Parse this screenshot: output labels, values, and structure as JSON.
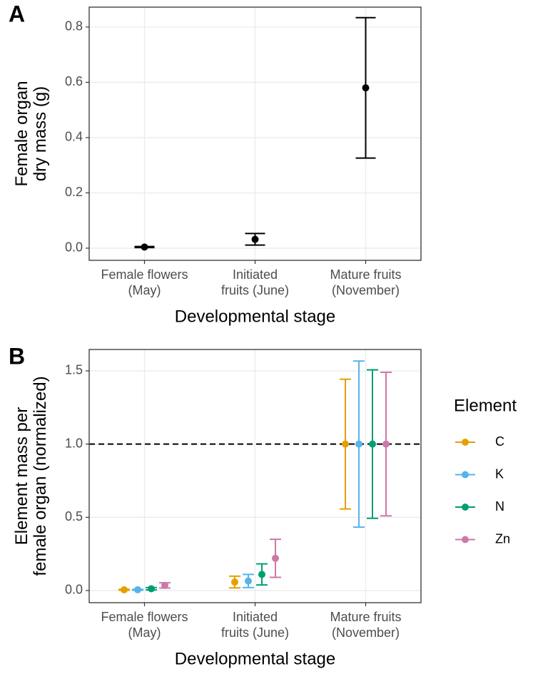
{
  "chart_data": [
    {
      "type": "errorbar",
      "tag": "A",
      "ylabel": "Female organ\ndry mass (g)",
      "xlabel": "Developmental stage",
      "categories": [
        "Female flowers\n(May)",
        "Initiated\nfruits (June)",
        "Mature fruits\n(November)"
      ],
      "values": [
        0.004,
        0.032,
        0.58
      ],
      "errors": [
        0.002,
        0.021,
        0.254
      ],
      "color": "#000000",
      "ylim": [
        -0.044,
        0.872
      ],
      "yticks": [
        {
          "value": 0,
          "label": "0.0"
        },
        0.2,
        0.4,
        0.6,
        0.8
      ],
      "grid": true
    },
    {
      "type": "errorbar",
      "tag": "B",
      "ylabel": "Element mass per\nfemale organ (normalized)",
      "xlabel": "Developmental stage",
      "categories": [
        "Female flowers\n(May)",
        "Initiated\nfruits (June)",
        "Mature fruits\n(November)"
      ],
      "legend_title": "Element",
      "legend": "right",
      "hline": 1,
      "series": [
        {
          "name": "C",
          "color": "#E69F00",
          "values": [
            0.005,
            0.058,
            1.0
          ],
          "errors": [
            0.003,
            0.04,
            0.443
          ]
        },
        {
          "name": "K",
          "color": "#56B4E9",
          "values": [
            0.005,
            0.065,
            1.0
          ],
          "errors": [
            0.003,
            0.045,
            0.567
          ]
        },
        {
          "name": "N",
          "color": "#009E73",
          "values": [
            0.012,
            0.11,
            1.0
          ],
          "errors": [
            0.008,
            0.072,
            0.507
          ]
        },
        {
          "name": "Zn",
          "color": "#CC79A7",
          "values": [
            0.035,
            0.22,
            1.0
          ],
          "errors": [
            0.018,
            0.13,
            0.49
          ]
        }
      ],
      "ylim": [
        -0.083,
        1.646
      ],
      "yticks": [
        {
          "value": 0,
          "label": "0.0"
        },
        0.5,
        {
          "value": 1,
          "label": "1.0"
        },
        1.5
      ],
      "grid": true
    }
  ]
}
